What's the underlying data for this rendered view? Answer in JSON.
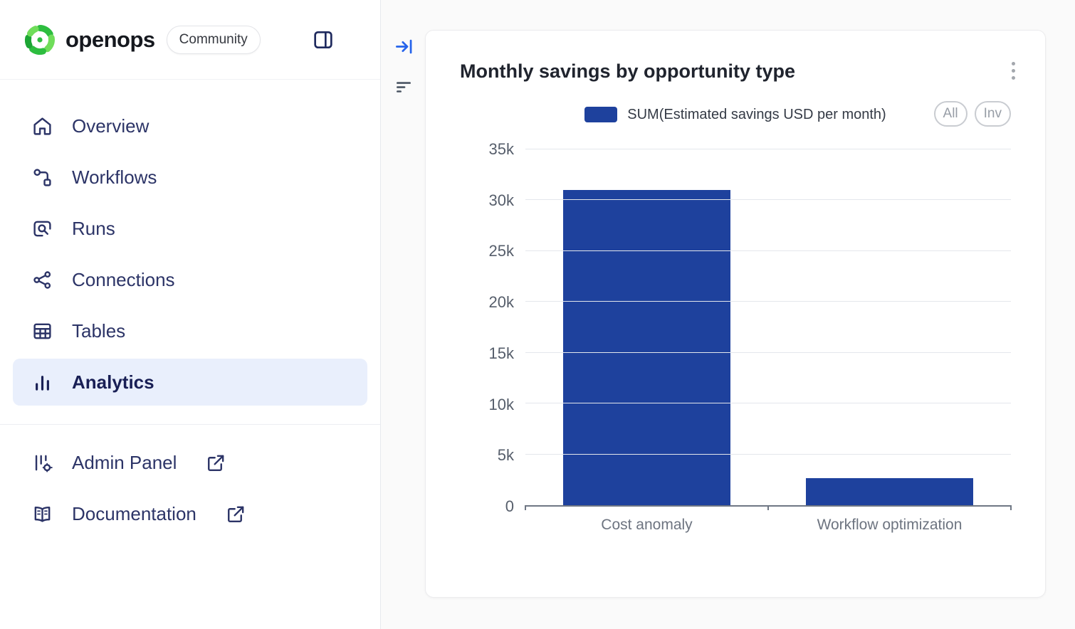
{
  "colors": {
    "bar": "#1e419d",
    "brand_green": "#2dbd3f",
    "active_item_bg": "#e9effc",
    "accent_blue": "#2563eb"
  },
  "sidebar": {
    "logo_text": "openops",
    "badge_label": "Community",
    "items": [
      {
        "label": "Overview",
        "icon": "home-icon"
      },
      {
        "label": "Workflows",
        "icon": "workflow-icon"
      },
      {
        "label": "Runs",
        "icon": "runs-icon"
      },
      {
        "label": "Connections",
        "icon": "share-icon"
      },
      {
        "label": "Tables",
        "icon": "table-icon"
      },
      {
        "label": "Analytics",
        "icon": "bar-chart-icon",
        "active": true
      }
    ],
    "footer_items": [
      {
        "label": "Admin Panel",
        "icon": "admin-panel-icon",
        "external": true
      },
      {
        "label": "Documentation",
        "icon": "book-icon",
        "external": true
      }
    ]
  },
  "main": {
    "card": {
      "title": "Monthly savings by opportunity type",
      "legend_label": "SUM(Estimated savings USD per month)",
      "legend_buttons": [
        "All",
        "Inv"
      ]
    }
  },
  "chart_data": {
    "type": "bar",
    "title": "Monthly savings by opportunity type",
    "categories": [
      "Cost anomaly",
      "Workflow optimization"
    ],
    "series": [
      {
        "name": "SUM(Estimated savings USD per month)",
        "values": [
          31000,
          2650
        ]
      }
    ],
    "ylim": [
      0,
      35000
    ],
    "yticks": [
      "0",
      "5k",
      "10k",
      "15k",
      "20k",
      "25k",
      "30k",
      "35k"
    ],
    "grid": true,
    "legend_position": "top",
    "bar_color": "#1e419d"
  }
}
